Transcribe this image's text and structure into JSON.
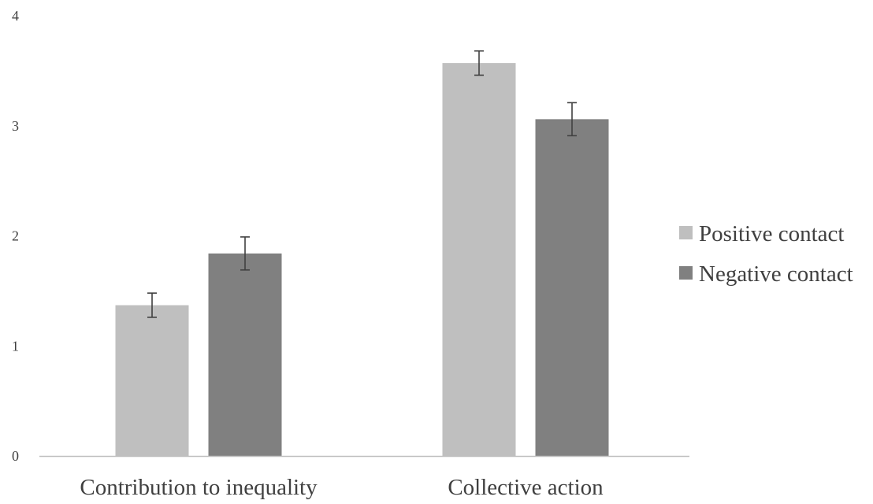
{
  "colors": {
    "positive": "#bfbfbf",
    "negative": "#808080",
    "axis": "#bfbfbf",
    "error_bar": "#404040",
    "text": "#404040"
  },
  "chart_data": {
    "type": "bar",
    "title": "",
    "xlabel": "",
    "ylabel": "",
    "categories": [
      "Contribution to inequality",
      "Collective action"
    ],
    "series": [
      {
        "name": "Positive contact",
        "values": [
          1.37,
          3.57
        ],
        "errors": [
          0.11,
          0.11
        ],
        "color": "#bfbfbf"
      },
      {
        "name": "Negative contact",
        "values": [
          1.84,
          3.06
        ],
        "errors": [
          0.15,
          0.15
        ],
        "color": "#808080"
      }
    ],
    "ylim": [
      0,
      4
    ],
    "yticks": [
      "0",
      "1",
      "2",
      "3",
      "4"
    ],
    "grid": false,
    "error_bars": true,
    "legend_position": "right"
  }
}
